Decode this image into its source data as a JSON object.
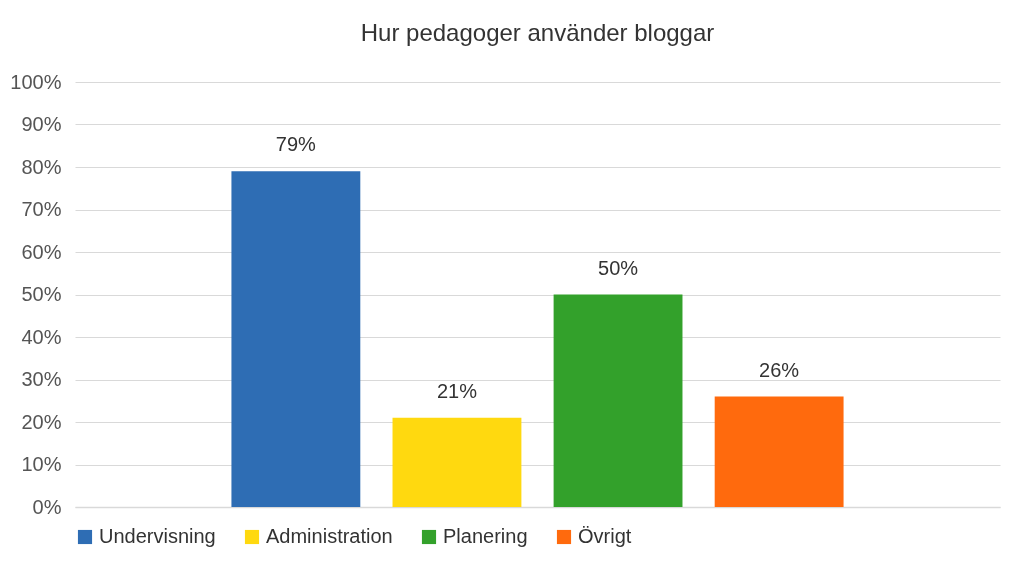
{
  "chart_data": {
    "type": "bar",
    "title": "Hur pedagoger använder bloggar",
    "categories": [
      null
    ],
    "series": [
      {
        "name": "Undervisning",
        "color": "#2e6db4",
        "values": [
          79
        ],
        "value_labels": [
          "79%"
        ]
      },
      {
        "name": "Administration",
        "color": "#ffd90f",
        "values": [
          21
        ],
        "value_labels": [
          "21%"
        ]
      },
      {
        "name": "Planering",
        "color": "#33a12b",
        "values": [
          50
        ],
        "value_labels": [
          "50%"
        ]
      },
      {
        "name": "Övrigt",
        "color": "#ff6a0d",
        "values": [
          26
        ],
        "value_labels": [
          "26%"
        ]
      }
    ],
    "ylim": [
      0,
      100
    ],
    "yticks": [
      {
        "value": 0,
        "label": "0%"
      },
      {
        "value": 10,
        "label": "10%"
      },
      {
        "value": 20,
        "label": "20%"
      },
      {
        "value": 30,
        "label": "30%"
      },
      {
        "value": 40,
        "label": "40%"
      },
      {
        "value": 50,
        "label": "50%"
      },
      {
        "value": 60,
        "label": "60%"
      },
      {
        "value": 70,
        "label": "70%"
      },
      {
        "value": 80,
        "label": "80%"
      },
      {
        "value": 90,
        "label": "90%"
      },
      {
        "value": 100,
        "label": "100%"
      }
    ],
    "grid": "y",
    "legend": "bottom"
  }
}
